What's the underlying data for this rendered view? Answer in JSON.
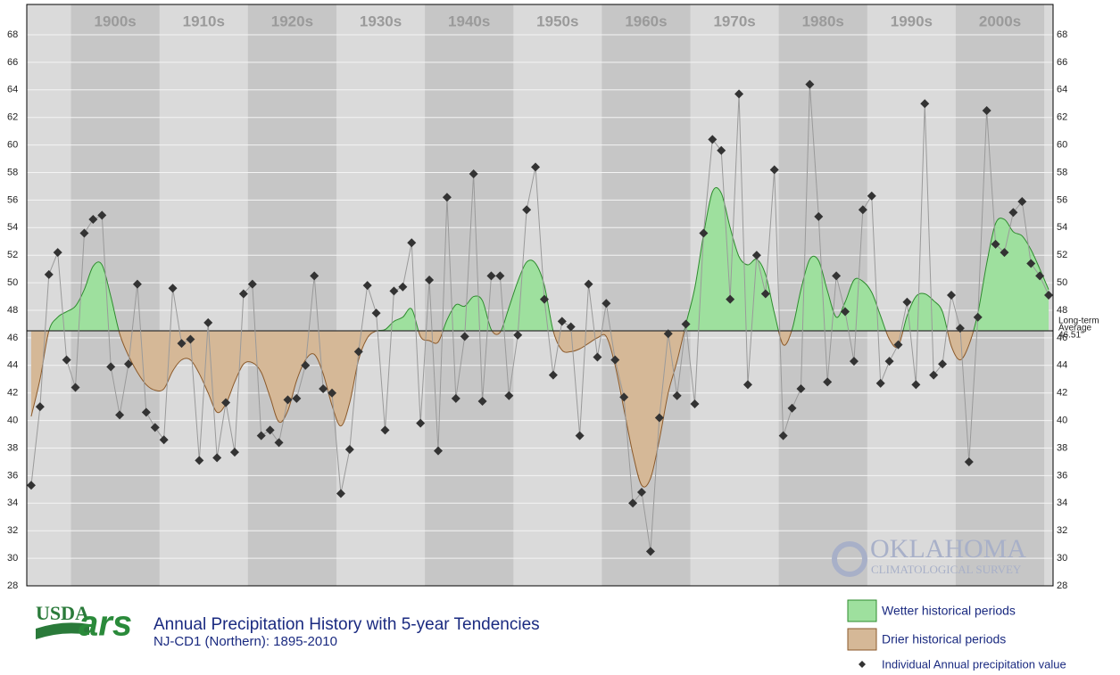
{
  "chart_data": {
    "type": "line",
    "title": "Annual Precipitation History with 5-year Tendencies",
    "subtitle": "NJ-CD1 (Northern): 1895-2010",
    "logos": {
      "usda": "USDA",
      "ars": "ars",
      "oklahoma": "OKLAHOMA",
      "survey": "CLIMATOLOGICAL SURVEY"
    },
    "decades": [
      "1900s",
      "1910s",
      "1920s",
      "1930s",
      "1940s",
      "1950s",
      "1960s",
      "1970s",
      "1980s",
      "1990s",
      "2000s"
    ],
    "x": [
      1895,
      1896,
      1897,
      1898,
      1899,
      1900,
      1901,
      1902,
      1903,
      1904,
      1905,
      1906,
      1907,
      1908,
      1909,
      1910,
      1911,
      1912,
      1913,
      1914,
      1915,
      1916,
      1917,
      1918,
      1919,
      1920,
      1921,
      1922,
      1923,
      1924,
      1925,
      1926,
      1927,
      1928,
      1929,
      1930,
      1931,
      1932,
      1933,
      1934,
      1935,
      1936,
      1937,
      1938,
      1939,
      1940,
      1941,
      1942,
      1943,
      1944,
      1945,
      1946,
      1947,
      1948,
      1949,
      1950,
      1951,
      1952,
      1953,
      1954,
      1955,
      1956,
      1957,
      1958,
      1959,
      1960,
      1961,
      1962,
      1963,
      1964,
      1965,
      1966,
      1967,
      1968,
      1969,
      1970,
      1971,
      1972,
      1973,
      1974,
      1975,
      1976,
      1977,
      1978,
      1979,
      1980,
      1981,
      1982,
      1983,
      1984,
      1985,
      1986,
      1987,
      1988,
      1989,
      1990,
      1991,
      1992,
      1993,
      1994,
      1995,
      1996,
      1997,
      1998,
      1999,
      2000,
      2001,
      2002,
      2003,
      2004,
      2005,
      2006,
      2007,
      2008,
      2009,
      2010
    ],
    "series": [
      {
        "name": "Individual Annual precipitation value",
        "color": "#333333",
        "values": [
          35.3,
          41.0,
          50.6,
          52.2,
          44.4,
          42.4,
          53.6,
          54.6,
          54.9,
          43.9,
          40.4,
          44.1,
          49.9,
          40.6,
          39.5,
          38.6,
          49.6,
          45.6,
          45.9,
          37.1,
          47.1,
          37.3,
          41.3,
          37.7,
          49.2,
          49.9,
          38.9,
          39.3,
          38.4,
          41.5,
          41.6,
          44.0,
          50.5,
          42.3,
          42.0,
          34.7,
          37.9,
          45.0,
          49.8,
          47.8,
          39.3,
          49.4,
          49.7,
          52.9,
          39.8,
          50.2,
          37.8,
          56.2,
          41.6,
          46.1,
          57.9,
          41.4,
          50.5,
          50.5,
          41.8,
          46.2,
          55.3,
          58.4,
          48.8,
          43.3,
          47.2,
          46.8,
          38.9,
          49.9,
          44.6,
          48.5,
          44.4,
          41.7,
          34.0,
          34.8,
          30.5,
          40.2,
          46.3,
          41.8,
          47.0,
          41.2,
          53.6,
          60.4,
          59.6,
          48.8,
          63.7,
          42.6,
          52.0,
          49.2,
          58.2,
          38.9,
          40.9,
          42.3,
          64.4,
          54.8,
          42.8,
          50.5,
          47.9,
          44.3,
          55.3,
          56.3,
          42.7,
          44.3,
          45.5,
          48.6,
          42.6,
          63.0,
          43.3,
          44.1,
          49.1,
          46.7,
          37.0,
          47.5,
          62.5,
          52.8,
          52.2,
          55.1,
          55.9,
          51.4,
          50.5,
          49.1
        ]
      }
    ],
    "tendency": {
      "above_color": "#9ee09e",
      "below_color": "#d5b897",
      "above_line": "#2e8b2e",
      "below_line": "#8b5a2b",
      "values": [
        40.3,
        43.0,
        46.5,
        47.5,
        47.9,
        48.3,
        49.5,
        51.2,
        51.3,
        49.0,
        46.3,
        44.7,
        43.5,
        42.6,
        42.2,
        42.3,
        43.6,
        44.4,
        44.4,
        43.4,
        42.0,
        40.6,
        41.2,
        42.8,
        44.1,
        44.2,
        43.5,
        41.7,
        39.9,
        40.7,
        42.9,
        44.4,
        44.8,
        43.4,
        41.1,
        39.6,
        41.3,
        44.4,
        46.0,
        46.5,
        46.6,
        47.2,
        47.5,
        48.1,
        46.1,
        45.8,
        45.7,
        47.3,
        48.4,
        48.3,
        49.0,
        48.7,
        46.6,
        46.4,
        48.2,
        50.1,
        51.5,
        51.4,
        49.8,
        46.5,
        45.1,
        45.0,
        45.2,
        45.6,
        46.0,
        46.1,
        44.0,
        40.8,
        37.6,
        35.3,
        35.8,
        38.6,
        42.0,
        44.3,
        47.0,
        49.6,
        53.5,
        56.6,
        56.5,
        54.0,
        51.9,
        51.3,
        51.7,
        50.6,
        47.8,
        45.5,
        46.6,
        49.5,
        51.7,
        51.6,
        49.4,
        47.5,
        48.6,
        50.2,
        50.1,
        49.3,
        47.6,
        45.9,
        45.4,
        47.6,
        49.0,
        49.2,
        48.7,
        47.9,
        45.4,
        44.4,
        45.5,
        47.8,
        51.4,
        54.3,
        54.6,
        53.7,
        53.4,
        52.4,
        51.0,
        49.5
      ]
    },
    "average": {
      "value": 46.51,
      "label": "46.51\"",
      "text": [
        "Long-term",
        "Average"
      ]
    },
    "legend": [
      {
        "label": "Wetter historical periods",
        "color": "#9ee09e"
      },
      {
        "label": "Drier historical periods",
        "color": "#d5b897"
      }
    ],
    "xlim": [
      1894.5,
      2010.5
    ],
    "ylim": [
      28,
      70.2
    ],
    "yticks": [
      28,
      30,
      32,
      34,
      36,
      38,
      40,
      42,
      44,
      46,
      48,
      50,
      52,
      54,
      56,
      58,
      60,
      62,
      64,
      66,
      68
    ],
    "grid": true
  }
}
